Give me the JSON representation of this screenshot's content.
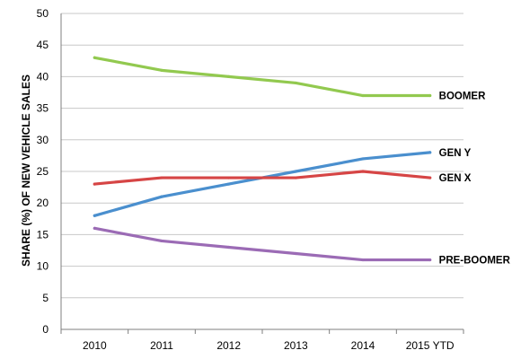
{
  "chart_data": {
    "type": "line",
    "title": "",
    "xlabel": "",
    "ylabel": "SHARE (%) OF NEW VEHICLE SALES",
    "categories": [
      "2010",
      "2011",
      "2012",
      "2013",
      "2014",
      "2015 YTD"
    ],
    "ylim": [
      0,
      50
    ],
    "yticks": [
      0,
      5,
      10,
      15,
      20,
      25,
      30,
      35,
      40,
      45,
      50
    ],
    "grid": true,
    "legend": "inline-right",
    "series": [
      {
        "name": "BOOMER",
        "color": "#92c94f",
        "values": [
          43,
          41,
          40,
          39,
          37,
          37
        ]
      },
      {
        "name": "GEN Y",
        "color": "#4a8fce",
        "values": [
          18,
          21,
          23,
          25,
          27,
          28
        ]
      },
      {
        "name": "GEN X",
        "color": "#d64545",
        "values": [
          23,
          24,
          24,
          24,
          25,
          24
        ]
      },
      {
        "name": "PRE-BOOMER",
        "color": "#9b6bb5",
        "values": [
          16,
          14,
          13,
          12,
          11,
          11
        ]
      }
    ]
  }
}
